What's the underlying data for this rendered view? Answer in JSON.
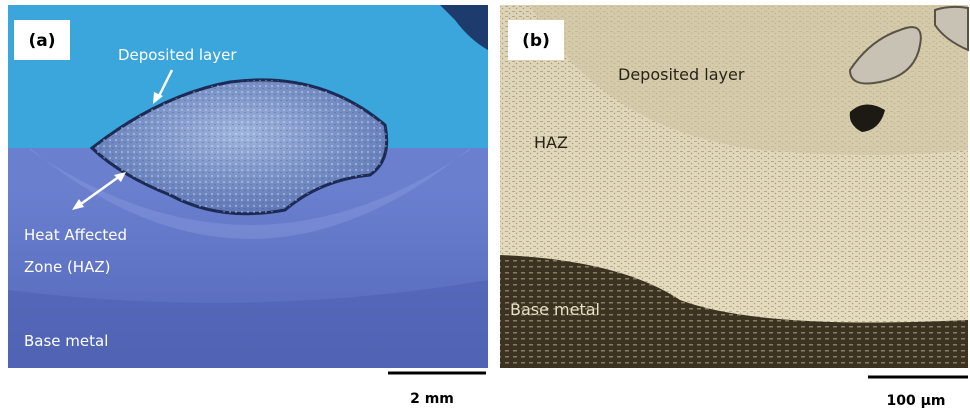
{
  "panels": [
    {
      "label": "(a)",
      "annotations": [
        "Deposited layer",
        "Heat Affected",
        "Zone (HAZ)",
        "Base metal"
      ],
      "scale_bar": "2 mm"
    },
    {
      "label": "(b)",
      "annotations": [
        "Deposited layer",
        "HAZ",
        "Base metal"
      ],
      "scale_bar": "100 µm"
    }
  ]
}
